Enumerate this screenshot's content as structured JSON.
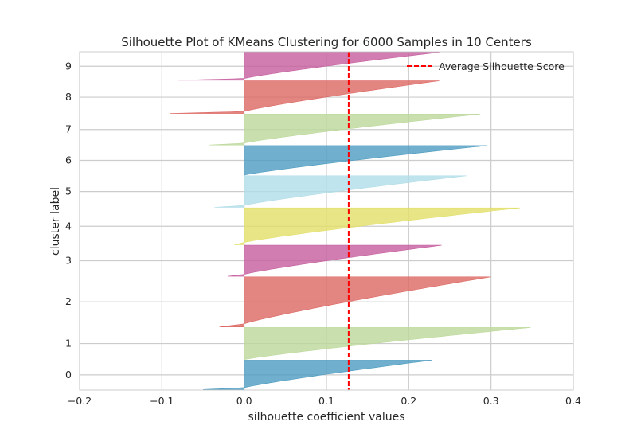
{
  "chart_data": {
    "type": "silhouette",
    "title": "Silhouette Plot of KMeans Clustering for 6000 Samples in 10 Centers",
    "xlabel": "silhouette coefficient values",
    "ylabel": "cluster label",
    "xlim": [
      -0.2,
      0.4
    ],
    "xticks": [
      -0.2,
      -0.1,
      0.0,
      0.1,
      0.2,
      0.3,
      0.4
    ],
    "xtick_labels": [
      "−0.2",
      "−0.1",
      "0.0",
      "0.1",
      "0.2",
      "0.3",
      "0.4"
    ],
    "grid": true,
    "legend": {
      "location": "top-right",
      "entries": [
        "Average Silhouette Score"
      ]
    },
    "avg_score": 0.127,
    "avg_color": "#ff0000",
    "total_samples": 6000,
    "clusters": [
      {
        "label": "0",
        "size": 530,
        "min": -0.05,
        "max": 0.228,
        "color": "#4c9bc0"
      },
      {
        "label": "1",
        "size": 580,
        "min": 0.0,
        "max": 0.348,
        "color": "#bcd89a"
      },
      {
        "label": "2",
        "size": 905,
        "min": -0.03,
        "max": 0.3,
        "color": "#dc6661"
      },
      {
        "label": "3",
        "size": 560,
        "min": -0.02,
        "max": 0.24,
        "color": "#c65c9e"
      },
      {
        "label": "4",
        "size": 665,
        "min": -0.012,
        "max": 0.335,
        "color": "#e2df68"
      },
      {
        "label": "5",
        "size": 570,
        "min": -0.036,
        "max": 0.27,
        "color": "#b0dde8"
      },
      {
        "label": "6",
        "size": 535,
        "min": 0.0,
        "max": 0.295,
        "color": "#4c9bc0"
      },
      {
        "label": "7",
        "size": 560,
        "min": -0.042,
        "max": 0.287,
        "color": "#bcd89a"
      },
      {
        "label": "8",
        "size": 590,
        "min": -0.09,
        "max": 0.237,
        "color": "#dc6661"
      },
      {
        "label": "9",
        "size": 505,
        "min": -0.08,
        "max": 0.237,
        "color": "#c65c9e"
      }
    ]
  }
}
